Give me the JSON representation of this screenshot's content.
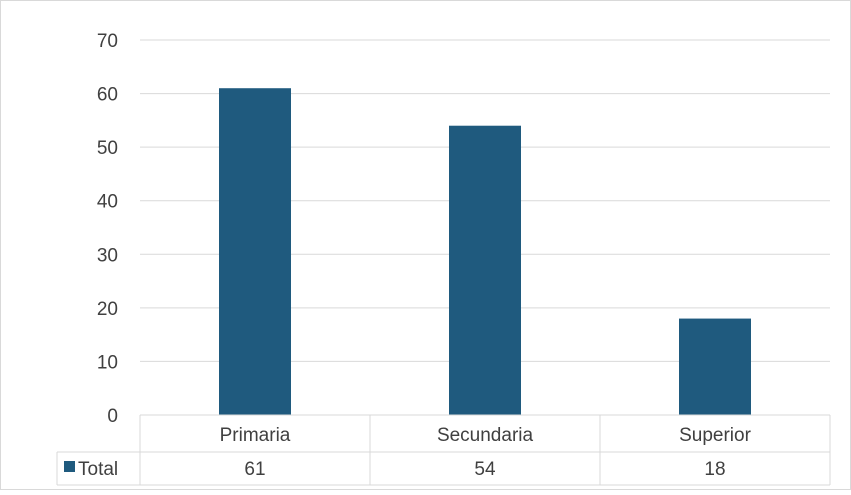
{
  "chart_data": {
    "type": "bar",
    "categories": [
      "Primaria",
      "Secundaria",
      "Superior"
    ],
    "series": [
      {
        "name": "Total",
        "values": [
          61,
          54,
          18
        ]
      }
    ],
    "ylim": [
      0,
      70
    ],
    "yticks": [
      0,
      10,
      20,
      30,
      40,
      50,
      60,
      70
    ],
    "grid": true,
    "legend": "data-table",
    "data_table": true,
    "colors": {
      "bar": "#1f5a7e",
      "grid": "#d9d9d9",
      "text": "#404040",
      "border": "#d9d9d9"
    }
  }
}
